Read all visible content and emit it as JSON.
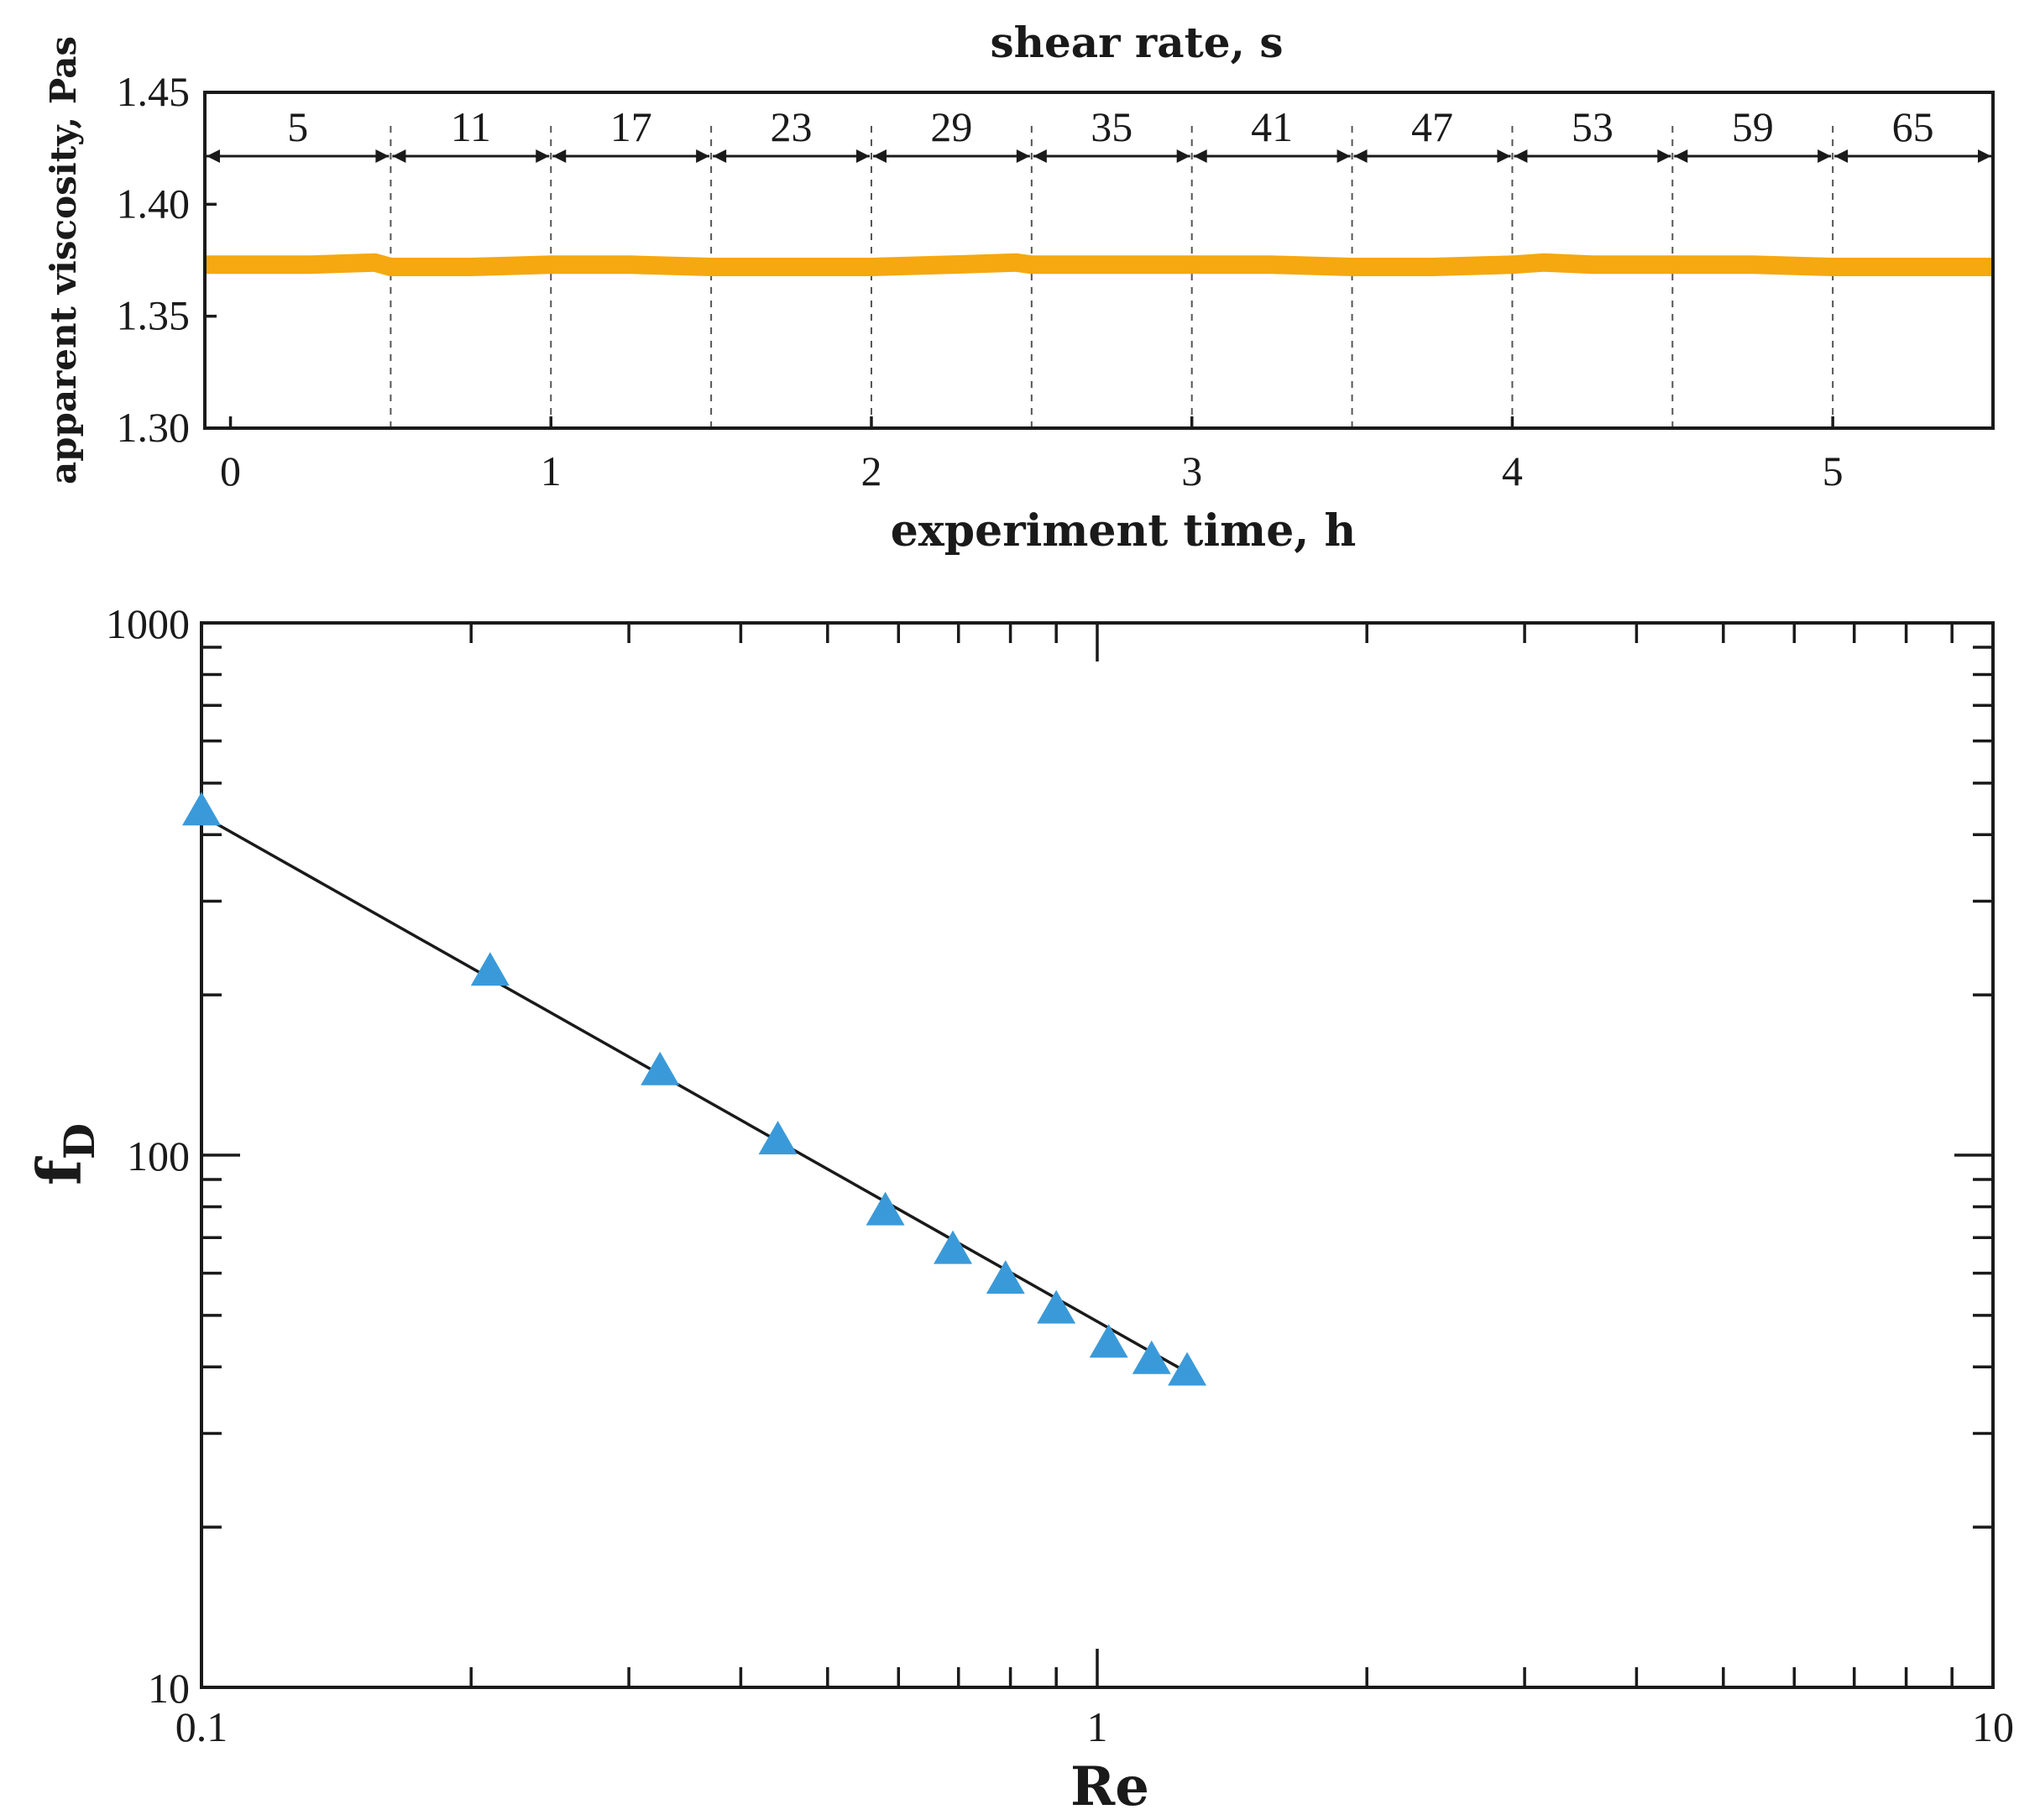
{
  "colors": {
    "viscosity_line": "#f5a80f",
    "marker": "#3a9ad9",
    "fit_line": "#1a1a1a",
    "axes": "#1a1a1a"
  },
  "chart_data": [
    {
      "type": "line",
      "title": "shear rate, s",
      "xlabel": "experiment time, h",
      "ylabel": "apparent viscosity, Pas",
      "xlim": [
        -0.08,
        5.5
      ],
      "ylim": [
        1.3,
        1.45
      ],
      "x_ticks": [
        "0",
        "1",
        "2",
        "3",
        "4",
        "5"
      ],
      "y_ticks": [
        "1.30",
        "1.35",
        "1.40",
        "1.45"
      ],
      "grid": false,
      "segment_boundaries_h": [
        0.5,
        1.0,
        1.5,
        2.0,
        2.5,
        3.0,
        3.5,
        4.0,
        4.5,
        5.0
      ],
      "shear_rate_segments": [
        "5",
        "11",
        "17",
        "23",
        "29",
        "35",
        "41",
        "47",
        "53",
        "59",
        "65"
      ],
      "series": [
        {
          "x": [
            -0.08,
            0.0,
            0.25,
            0.45,
            0.5,
            0.75,
            1.0,
            1.25,
            1.5,
            1.75,
            2.0,
            2.25,
            2.45,
            2.5,
            2.75,
            3.0,
            3.25,
            3.5,
            3.75,
            4.0,
            4.1,
            4.25,
            4.5,
            4.75,
            5.0,
            5.25,
            5.5
          ],
          "values": [
            1.373,
            1.373,
            1.373,
            1.374,
            1.372,
            1.372,
            1.373,
            1.373,
            1.372,
            1.372,
            1.372,
            1.373,
            1.374,
            1.373,
            1.373,
            1.373,
            1.373,
            1.372,
            1.372,
            1.373,
            1.374,
            1.373,
            1.373,
            1.373,
            1.372,
            1.372,
            1.372
          ]
        }
      ]
    },
    {
      "type": "scatter",
      "xlabel": "Re",
      "ylabel": "fD",
      "ylabel_main": "f",
      "ylabel_sub": "D",
      "xscale": "log",
      "yscale": "log",
      "xlim": [
        0.1,
        10
      ],
      "ylim": [
        10,
        1000
      ],
      "x_ticks": [
        "0.1",
        "1",
        "10"
      ],
      "y_ticks": [
        "10",
        "100",
        "1000"
      ],
      "grid": false,
      "series": [
        {
          "x": [
            0.1,
            0.21,
            0.325,
            0.44,
            0.58,
            0.69,
            0.79,
            0.9,
            1.03,
            1.15,
            1.26
          ],
          "values": [
            440,
            220,
            143,
            106,
            78,
            66,
            58,
            51,
            44,
            41,
            39
          ]
        }
      ],
      "fit_line": {
        "x": [
          0.1,
          1.28
        ],
        "values": [
          435,
          38.5
        ]
      }
    }
  ]
}
